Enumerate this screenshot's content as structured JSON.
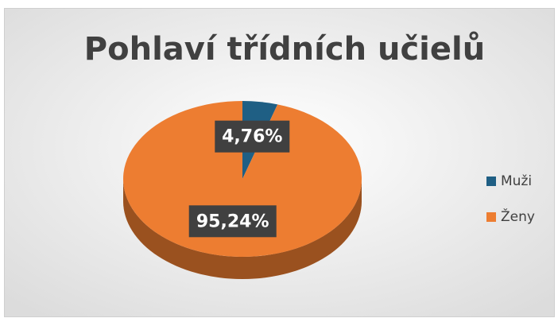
{
  "chart_data": {
    "type": "pie",
    "title": "Pohlaví třídních učielů",
    "categories": [
      "Muži",
      "Ženy"
    ],
    "values": [
      4.76,
      95.24
    ],
    "value_labels": [
      "4,76%",
      "95,24%"
    ],
    "colors": [
      "#1f5f84",
      "#ed7d31"
    ],
    "legend": "right"
  }
}
